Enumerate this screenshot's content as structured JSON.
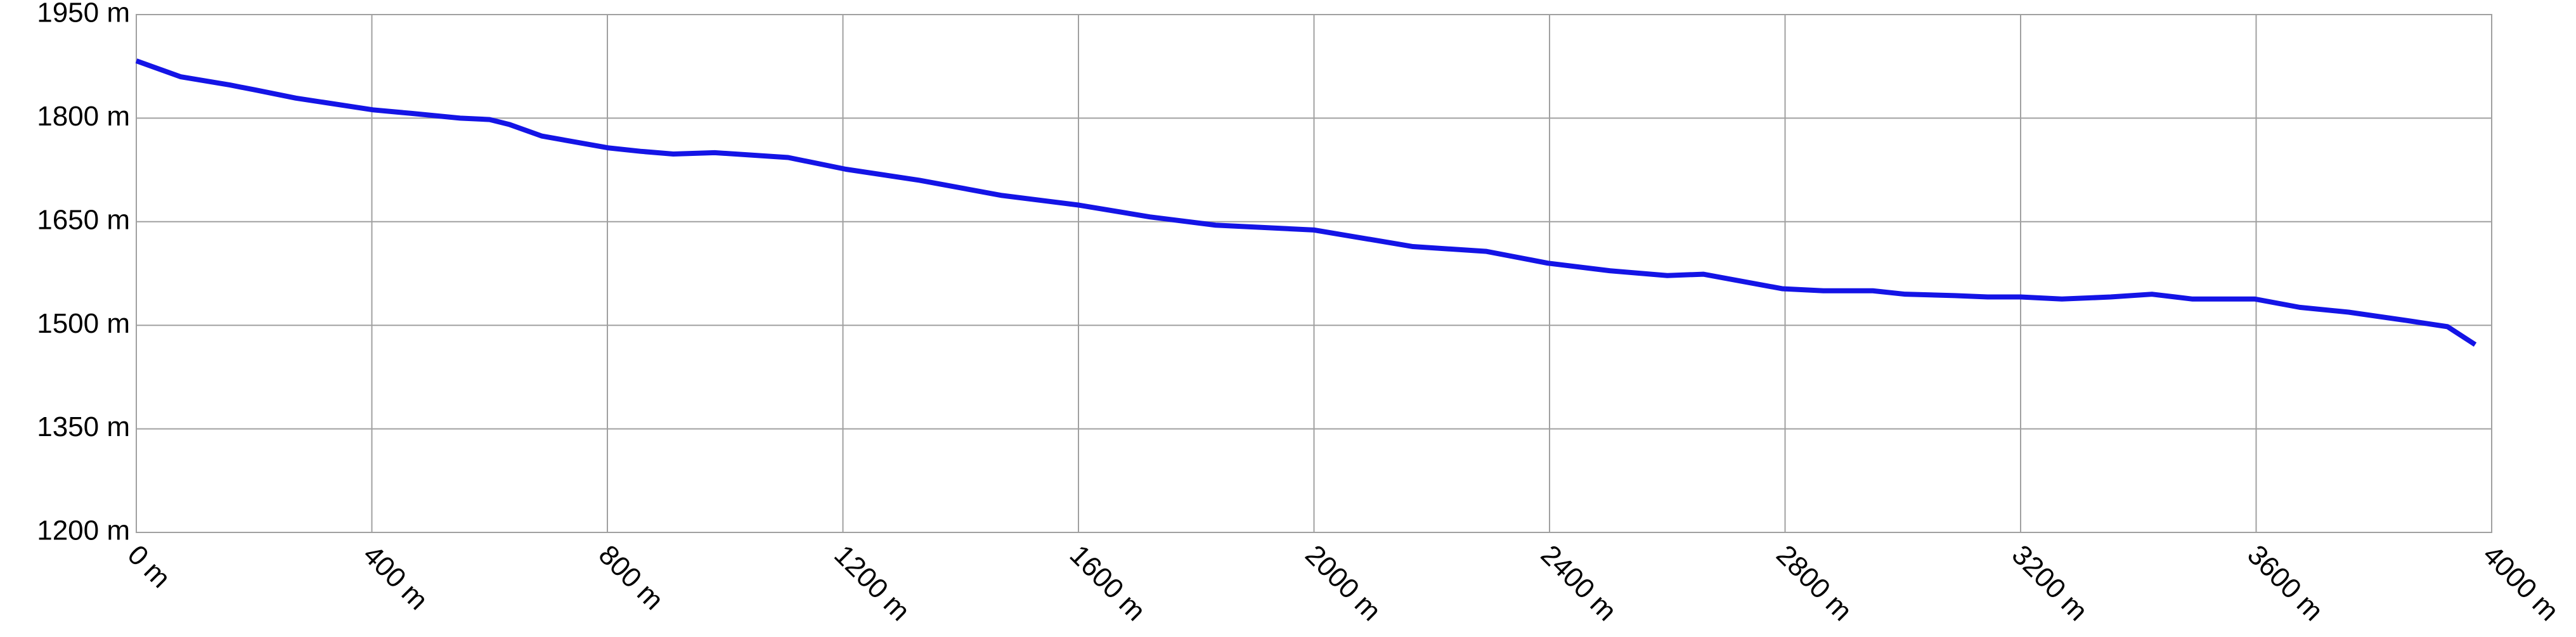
{
  "chart_data": {
    "type": "line",
    "x": [
      0,
      75,
      159,
      201,
      271,
      402,
      466,
      550,
      600,
      633,
      689,
      801,
      856,
      912,
      982,
      1107,
      1205,
      1330,
      1470,
      1601,
      1721,
      1833,
      2000,
      2168,
      2293,
      2397,
      2502,
      2600,
      2661,
      2795,
      2865,
      2949,
      3004,
      3088,
      3144,
      3200,
      3270,
      3353,
      3423,
      3492,
      3598,
      3674,
      3757,
      3855,
      3925,
      3972
    ],
    "series": [
      {
        "color": "#1414e6",
        "values": [
          1883,
          1860,
          1848,
          1841,
          1829,
          1812,
          1807,
          1800,
          1798,
          1791,
          1774,
          1757,
          1752,
          1748,
          1750,
          1743,
          1726,
          1710,
          1688,
          1674,
          1657,
          1645,
          1638,
          1614,
          1607,
          1590,
          1579,
          1572,
          1574,
          1553,
          1550,
          1550,
          1545,
          1543,
          1541,
          1541,
          1538,
          1541,
          1545,
          1538,
          1538,
          1526,
          1519,
          1507,
          1498,
          1472
        ]
      }
    ],
    "xlim": [
      0,
      4000
    ],
    "xticks": [
      {
        "value": 0,
        "label": "0 m"
      },
      {
        "value": 400,
        "label": "400 m"
      },
      {
        "value": 800,
        "label": "800 m"
      },
      {
        "value": 1200,
        "label": "1200 m"
      },
      {
        "value": 1600,
        "label": "1600 m"
      },
      {
        "value": 2000,
        "label": "2000 m"
      },
      {
        "value": 2400,
        "label": "2400 m"
      },
      {
        "value": 2800,
        "label": "2800 m"
      },
      {
        "value": 3200,
        "label": "3200 m"
      },
      {
        "value": 3600,
        "label": "3600 m"
      },
      {
        "value": 4000,
        "label": "4000 m"
      }
    ],
    "ylim": [
      1200,
      1950
    ],
    "yticks": [
      {
        "value": 1200,
        "label": "1200 m"
      },
      {
        "value": 1350,
        "label": "1350 m"
      },
      {
        "value": 1500,
        "label": "1500 m"
      },
      {
        "value": 1650,
        "label": "1650 m"
      },
      {
        "value": 1800,
        "label": "1800 m"
      },
      {
        "value": 1950,
        "label": "1950 m"
      }
    ],
    "grid": true
  }
}
